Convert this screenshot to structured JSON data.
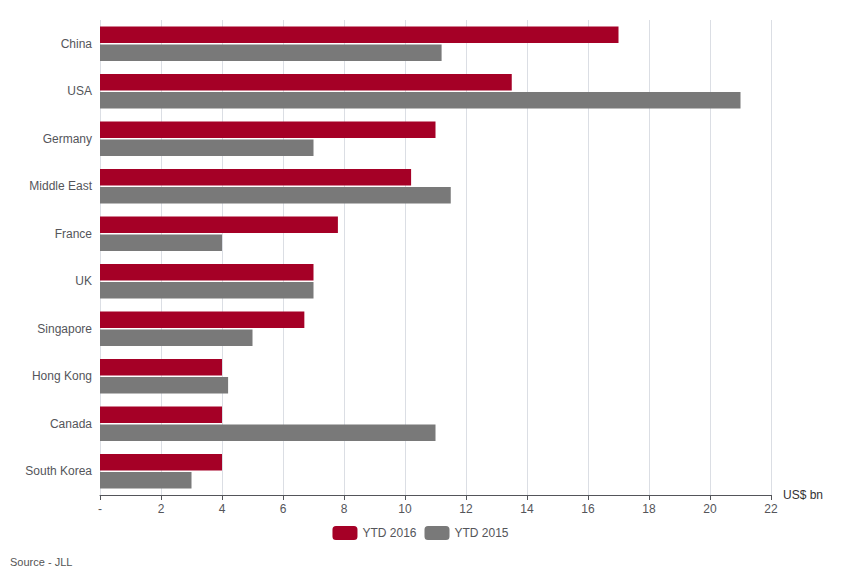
{
  "chart_data": {
    "type": "bar",
    "orientation": "horizontal",
    "categories": [
      "China",
      "USA",
      "Germany",
      "Middle East",
      "France",
      "UK",
      "Singapore",
      "Hong Kong",
      "Canada",
      "South Korea"
    ],
    "series": [
      {
        "name": "YTD 2016",
        "color": "#a50026",
        "values": [
          17.0,
          13.5,
          11.0,
          10.2,
          7.8,
          7.0,
          6.7,
          4.0,
          4.0,
          4.0
        ]
      },
      {
        "name": "YTD 2015",
        "color": "#797979",
        "values": [
          11.2,
          21.0,
          7.0,
          11.5,
          4.0,
          7.0,
          5.0,
          4.2,
          11.0,
          3.0
        ]
      }
    ],
    "xlim": [
      0,
      22
    ],
    "xticks": [
      {
        "value": 0,
        "label": "-"
      },
      2,
      4,
      6,
      8,
      10,
      12,
      14,
      16,
      18,
      20,
      22
    ],
    "xlabel": "US$ bn",
    "annotations": [
      "Source - JLL"
    ],
    "grid": true,
    "legend": "bottom"
  }
}
